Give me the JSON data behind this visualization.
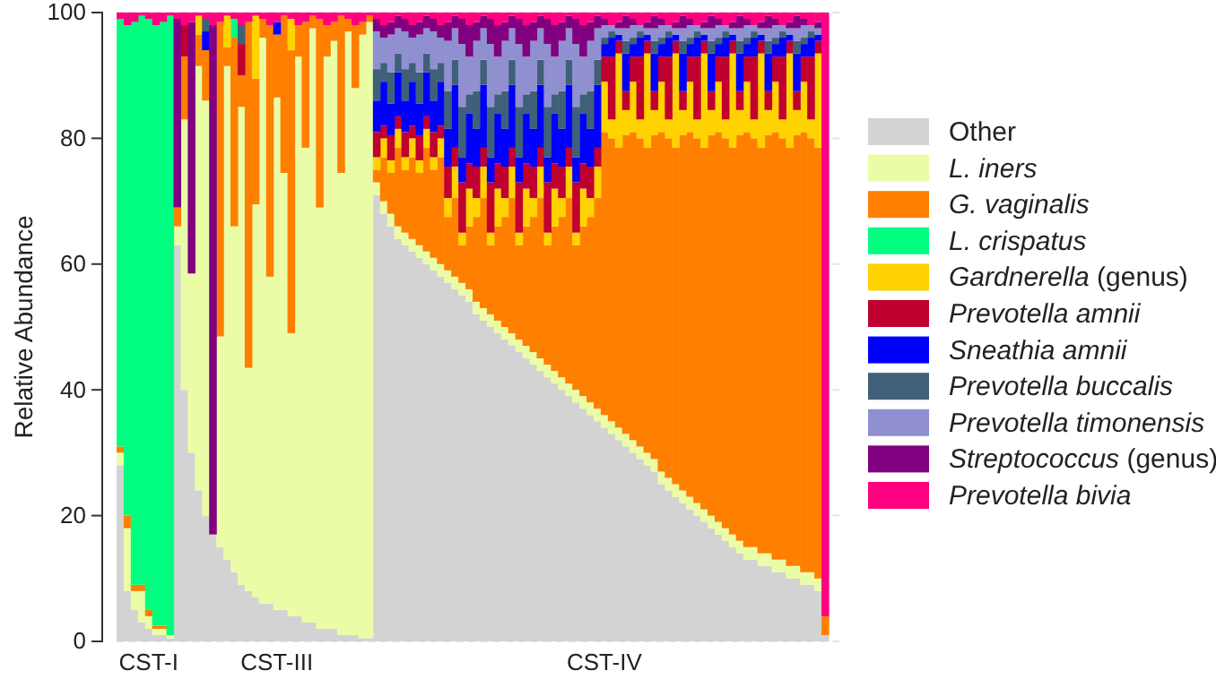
{
  "chart_data": {
    "type": "bar",
    "stacked": true,
    "ylabel": "Relative Abundance",
    "ylim": [
      0,
      100
    ],
    "yticks": [
      0,
      20,
      40,
      60,
      80,
      100
    ],
    "grid": "y",
    "legend": "right",
    "categories": [
      null,
      null,
      null,
      null,
      "CST-I",
      null,
      null,
      null,
      null,
      null,
      null,
      null,
      null,
      null,
      null,
      null,
      null,
      null,
      null,
      null,
      null,
      null,
      "CST-III",
      null,
      null,
      null,
      null,
      null,
      null,
      null,
      null,
      null,
      null,
      null,
      null,
      null,
      null,
      null,
      null,
      null,
      null,
      null,
      null,
      null,
      null,
      null,
      null,
      null,
      null,
      null,
      null,
      null,
      null,
      null,
      null,
      null,
      null,
      null,
      null,
      null,
      null,
      null,
      null,
      null,
      null,
      null,
      null,
      null,
      "CST-IV",
      null,
      null,
      null,
      null,
      null,
      null,
      null,
      null,
      null,
      null,
      null,
      null,
      null,
      null,
      null,
      null,
      null,
      null,
      null,
      null,
      null,
      null,
      null,
      null,
      null,
      null,
      null,
      null,
      null,
      null,
      null
    ],
    "series": [
      {
        "name": "Other",
        "color": "#d3d3d3",
        "values": [
          28,
          8,
          5,
          3,
          2,
          1,
          1,
          0.5,
          63,
          40,
          30,
          24,
          20,
          17,
          15,
          13,
          11,
          9,
          8,
          7,
          6,
          6,
          5,
          5,
          4,
          4,
          3,
          3,
          2,
          2,
          2,
          1,
          1,
          1,
          0.5,
          0.5,
          71,
          68,
          66,
          64,
          63,
          62,
          61,
          60,
          59,
          58,
          57,
          56,
          55,
          54,
          52,
          51,
          50,
          49,
          48,
          47,
          46,
          45,
          44,
          43,
          42,
          41,
          40,
          39,
          38,
          37,
          36,
          35,
          34,
          33,
          32,
          31,
          30,
          29,
          28,
          27,
          25,
          24,
          23,
          22,
          21,
          20,
          19,
          18,
          17,
          16,
          15,
          14,
          13,
          13,
          12,
          12,
          11,
          11,
          10,
          10,
          9,
          9,
          8,
          1
        ]
      },
      {
        "name": "L. iners",
        "color": "#ebfca6",
        "values": [
          2,
          10,
          3,
          5,
          2,
          1,
          1,
          0.5,
          3,
          43,
          28.5,
          67.5,
          66,
          0,
          33.5,
          78.5,
          55,
          76,
          35.5,
          62.5,
          90,
          52,
          81.5,
          69.5,
          45,
          89,
          75.5,
          94.5,
          67,
          91,
          93.5,
          73.5,
          96,
          87,
          96,
          98,
          2,
          2,
          2,
          2,
          2,
          2,
          2,
          2,
          2,
          2,
          2,
          2,
          2,
          2,
          2,
          2,
          2,
          2,
          2,
          2,
          2,
          2,
          2,
          2,
          2,
          2,
          2,
          2,
          2,
          2,
          2,
          2,
          2,
          2,
          2,
          2,
          2,
          2,
          2,
          2,
          2,
          2,
          2,
          2,
          2,
          2,
          2,
          2,
          2,
          2,
          2,
          2,
          2,
          2,
          2,
          2,
          2,
          2,
          2,
          2,
          2,
          2,
          2,
          0
        ]
      },
      {
        "name": "G. vaginalis",
        "color": "#ff8000",
        "values": [
          1,
          2,
          1,
          1,
          1,
          0.5,
          0.5,
          0,
          3,
          10,
          0,
          5,
          8,
          0,
          50,
          3,
          30,
          5,
          55,
          20,
          3,
          40,
          10,
          25,
          45,
          5,
          20,
          2,
          30,
          5,
          3,
          25,
          2,
          10,
          2,
          1,
          2,
          7,
          6.5,
          12.5,
          10,
          13,
          11.5,
          16.5,
          14,
          17,
          8.5,
          12.5,
          6,
          10,
          13.5,
          17.5,
          11,
          15,
          17.5,
          21.5,
          15,
          19,
          21.5,
          25.5,
          19,
          23,
          25.5,
          29.5,
          23,
          27,
          29.5,
          33.5,
          45,
          45,
          44.5,
          47.5,
          49,
          49,
          48.5,
          51.5,
          54,
          54,
          53.5,
          56.5,
          58,
          58,
          57.5,
          60.5,
          62,
          62,
          61.5,
          64.5,
          66,
          65,
          64.5,
          66.5,
          68,
          67,
          66.5,
          68.5,
          70,
          69,
          68.5,
          3
        ]
      },
      {
        "name": "L. crispatus",
        "color": "#00ff80",
        "values": [
          68,
          78,
          89.5,
          90.5,
          94,
          95.5,
          96,
          98.5,
          0,
          0,
          0,
          0,
          0,
          0,
          0,
          0,
          3,
          0,
          0,
          0,
          0,
          0,
          0,
          0,
          0,
          0,
          0,
          0,
          0,
          0,
          0,
          0,
          0,
          0,
          0,
          0,
          0,
          0,
          0,
          0,
          0,
          0,
          0,
          0,
          0,
          0,
          0,
          0,
          0,
          0,
          0,
          0,
          0,
          0,
          0,
          0,
          0,
          0,
          0,
          0,
          0,
          0,
          0,
          0,
          0,
          0,
          0,
          0,
          0,
          0,
          0,
          0,
          0,
          0,
          0,
          0,
          0,
          0,
          0,
          0,
          0,
          0,
          0,
          0,
          0,
          0,
          0,
          0,
          0,
          0,
          0,
          0,
          0,
          0,
          0,
          0,
          0,
          0,
          0,
          0
        ]
      },
      {
        "name": "Gardnerella (genus)",
        "color": "#ffd200",
        "values": [
          0,
          0,
          0,
          0,
          0,
          0,
          0,
          0,
          0,
          0,
          0,
          3,
          0,
          0,
          0,
          5,
          0,
          0,
          0,
          10,
          0,
          0,
          0,
          0,
          5,
          0,
          0,
          0,
          0,
          0,
          0,
          0,
          0,
          0,
          0,
          0,
          2,
          3,
          2,
          3,
          2,
          3,
          2,
          3,
          2,
          3,
          3,
          5,
          2,
          6,
          3,
          5,
          2,
          6,
          3,
          5,
          2,
          6,
          3,
          5,
          2,
          6,
          3,
          5,
          2,
          6,
          3,
          5,
          8,
          3,
          15,
          4,
          8,
          3,
          15,
          4,
          8,
          3,
          15,
          4,
          8,
          3,
          15,
          4,
          8,
          3,
          15,
          4,
          8,
          3,
          15,
          4,
          8,
          3,
          15,
          4,
          8,
          3,
          15,
          0
        ]
      },
      {
        "name": "Prevotella amnii",
        "color": "#c0002f",
        "values": [
          0,
          0,
          0,
          0,
          0,
          0,
          0,
          0,
          0,
          5,
          0,
          0,
          0,
          0,
          0,
          0,
          0,
          5,
          0,
          0,
          0,
          0,
          0,
          0,
          0,
          0,
          0,
          0,
          0,
          0,
          0,
          0,
          0,
          0,
          0,
          0,
          4,
          2,
          4,
          2,
          4,
          2,
          4,
          2,
          4,
          2,
          5,
          3,
          8,
          4,
          5,
          3,
          8,
          4,
          5,
          3,
          8,
          4,
          5,
          3,
          8,
          4,
          5,
          3,
          8,
          4,
          5,
          3,
          4,
          10,
          2,
          3,
          4,
          10,
          2,
          3,
          4,
          10,
          2,
          3,
          4,
          10,
          2,
          3,
          4,
          10,
          2,
          3,
          4,
          10,
          2,
          3,
          4,
          10,
          2,
          3,
          4,
          10,
          2,
          0
        ]
      },
      {
        "name": "Sneathia amnii",
        "color": "#0000ff",
        "values": [
          0,
          0,
          0,
          0,
          0,
          0,
          0,
          0,
          0,
          0,
          0,
          0,
          3,
          0,
          0,
          0,
          0,
          0,
          0,
          0,
          0,
          0,
          2,
          0,
          0,
          0,
          0,
          0,
          0,
          0,
          0,
          0,
          0,
          0,
          0,
          0,
          5,
          7,
          5,
          7,
          5,
          7,
          5,
          7,
          5,
          7,
          6,
          10,
          4,
          8,
          6,
          10,
          4,
          8,
          6,
          10,
          4,
          8,
          6,
          10,
          4,
          8,
          6,
          10,
          4,
          8,
          6,
          10,
          2,
          3,
          1,
          6,
          2,
          3,
          1,
          6,
          2,
          3,
          1,
          6,
          2,
          3,
          1,
          6,
          2,
          3,
          1,
          6,
          2,
          3,
          1,
          6,
          2,
          3,
          1,
          6,
          2,
          3,
          1,
          0
        ]
      },
      {
        "name": "Prevotella buccalis",
        "color": "#3f6078",
        "values": [
          0,
          0,
          0,
          0,
          0,
          0,
          0,
          0,
          0,
          0,
          0,
          0,
          2,
          0,
          0,
          0,
          0,
          3,
          0,
          0,
          0,
          0,
          0,
          0,
          0,
          0,
          0,
          0,
          0,
          0,
          0,
          0,
          0,
          0,
          0,
          0,
          5,
          3,
          5,
          3,
          5,
          3,
          5,
          3,
          5,
          3,
          6,
          4,
          8,
          3,
          6,
          4,
          8,
          3,
          6,
          4,
          8,
          3,
          6,
          4,
          8,
          3,
          6,
          4,
          8,
          3,
          6,
          4,
          1,
          1,
          0,
          2,
          1,
          1,
          0,
          2,
          1,
          1,
          0,
          2,
          1,
          1,
          0,
          2,
          1,
          1,
          0,
          2,
          1,
          1,
          0,
          2,
          1,
          1,
          0,
          2,
          1,
          1,
          0,
          0
        ]
      },
      {
        "name": "Prevotella timonensis",
        "color": "#9090d0",
        "values": [
          0,
          0,
          0,
          0,
          0,
          0,
          0,
          0,
          0,
          0,
          0,
          0,
          0,
          0,
          0,
          0,
          0,
          0,
          0,
          0,
          0,
          0,
          0,
          0,
          0,
          0,
          0,
          0,
          0,
          0,
          0,
          0,
          0,
          0,
          0,
          0,
          6,
          4,
          6,
          4,
          6,
          4,
          6,
          4,
          6,
          4,
          8,
          5,
          10,
          6,
          8,
          5,
          10,
          6,
          8,
          5,
          10,
          6,
          8,
          5,
          10,
          6,
          8,
          5,
          10,
          6,
          8,
          5,
          2,
          1,
          1,
          2,
          2,
          1,
          1,
          2,
          2,
          1,
          1,
          2,
          2,
          1,
          1,
          2,
          2,
          1,
          1,
          2,
          2,
          1,
          1,
          2,
          2,
          1,
          1,
          2,
          2,
          1,
          1,
          0
        ]
      },
      {
        "name": "Streptococcus (genus)",
        "color": "#800080",
        "values": [
          0,
          0,
          0,
          0,
          0,
          0,
          0,
          0,
          30,
          0,
          40,
          0,
          0,
          81,
          0,
          0,
          0,
          0,
          0,
          0,
          0,
          0,
          0,
          0,
          0,
          0,
          0,
          0,
          0,
          0,
          0,
          0,
          0,
          0,
          0,
          0,
          2,
          2,
          2,
          2,
          2,
          2,
          2,
          2,
          2,
          2,
          3,
          2,
          4,
          5,
          3,
          2,
          4,
          5,
          3,
          2,
          4,
          5,
          3,
          2,
          4,
          5,
          3,
          2,
          4,
          5,
          3,
          2,
          1,
          0,
          1,
          2,
          1,
          0,
          1,
          2,
          1,
          0,
          1,
          2,
          1,
          0,
          1,
          2,
          1,
          0,
          1,
          2,
          1,
          0,
          1,
          2,
          1,
          0,
          1,
          2,
          1,
          0,
          1,
          0
        ]
      },
      {
        "name": "Prevotella bivia",
        "color": "#ff0080",
        "values": [
          1,
          2,
          1.5,
          0.5,
          1,
          2,
          1.5,
          0.5,
          1,
          2,
          1.5,
          0.5,
          1,
          2,
          1.5,
          0.5,
          1,
          2,
          1.5,
          0.5,
          1,
          2,
          1.5,
          0.5,
          1,
          2,
          1.5,
          0.5,
          1,
          2,
          1.5,
          0.5,
          1,
          2,
          1.5,
          0.5,
          1,
          2,
          1.5,
          0.5,
          1,
          2,
          1.5,
          0.5,
          1,
          2,
          1.5,
          0.5,
          1,
          2,
          1.5,
          0.5,
          1,
          2,
          1.5,
          0.5,
          1,
          2,
          1.5,
          0.5,
          1,
          2,
          1.5,
          0.5,
          1,
          2,
          1.5,
          0.5,
          1,
          2,
          1.5,
          0.5,
          1,
          2,
          1.5,
          0.5,
          1,
          2,
          1.5,
          0.5,
          1,
          2,
          1.5,
          0.5,
          1,
          2,
          1.5,
          0.5,
          1,
          2,
          1.5,
          0.5,
          1,
          2,
          1.5,
          0.5,
          1,
          2,
          1.5,
          96
        ]
      }
    ]
  }
}
